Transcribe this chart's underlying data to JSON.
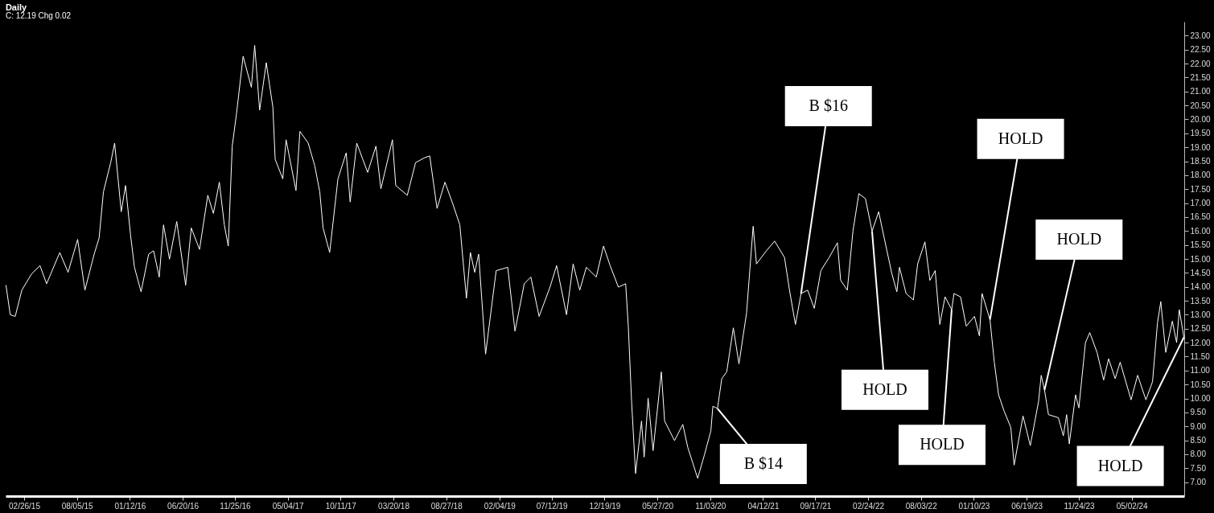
{
  "chart_data": {
    "type": "line",
    "title": "Daily",
    "subtitle": "C: 12.19  Chg 0.02",
    "x": [
      "2015-01-02",
      "2015-01-15",
      "2015-01-30",
      "2015-02-19",
      "2015-03-21",
      "2015-04-15",
      "2015-05-05",
      "2015-06-14",
      "2015-07-09",
      "2015-08-07",
      "2015-08-29",
      "2015-09-26",
      "2015-10-11",
      "2015-10-24",
      "2015-11-15",
      "2015-11-27",
      "2015-12-17",
      "2015-12-30",
      "2016-01-14",
      "2016-01-26",
      "2016-02-15",
      "2016-03-09",
      "2016-03-24",
      "2016-04-10",
      "2016-04-23",
      "2016-05-11",
      "2016-06-02",
      "2016-06-29",
      "2016-07-16",
      "2016-08-10",
      "2016-09-04",
      "2016-09-21",
      "2016-10-09",
      "2016-10-24",
      "2016-11-05",
      "2016-11-17",
      "2016-11-30",
      "2016-12-20",
      "2017-01-14",
      "2017-01-24",
      "2017-02-08",
      "2017-02-28",
      "2017-03-20",
      "2017-03-27",
      "2017-04-19",
      "2017-04-29",
      "2017-05-29",
      "2017-06-10",
      "2017-07-05",
      "2017-07-25",
      "2017-08-09",
      "2017-08-19",
      "2017-09-08",
      "2017-10-03",
      "2017-10-28",
      "2017-11-09",
      "2017-11-29",
      "2018-01-01",
      "2018-01-26",
      "2018-02-10",
      "2018-03-17",
      "2018-03-27",
      "2018-05-01",
      "2018-05-26",
      "2018-06-23",
      "2018-07-08",
      "2018-07-30",
      "2018-08-23",
      "2018-09-17",
      "2018-10-07",
      "2018-10-27",
      "2018-11-08",
      "2018-11-21",
      "2018-12-03",
      "2018-12-24",
      "2019-01-25",
      "2019-03-01",
      "2019-03-23",
      "2019-04-20",
      "2019-05-10",
      "2019-06-04",
      "2019-07-07",
      "2019-07-27",
      "2019-08-26",
      "2019-09-15",
      "2019-10-05",
      "2019-10-25",
      "2019-11-24",
      "2019-12-16",
      "2020-01-05",
      "2020-01-30",
      "2020-02-21",
      "2020-02-29",
      "2020-03-10",
      "2020-03-22",
      "2020-04-09",
      "2020-04-17",
      "2020-04-29",
      "2020-05-14",
      "2020-06-08",
      "2020-06-18",
      "2020-07-18",
      "2020-08-12",
      "2020-08-27",
      "2020-09-26",
      "2020-10-16",
      "2020-11-05",
      "2020-11-11",
      "2020-11-25",
      "2020-12-08",
      "2020-12-23",
      "2021-01-12",
      "2021-01-29",
      "2021-02-21",
      "2021-03-13",
      "2021-03-23",
      "2021-04-22",
      "2021-05-17",
      "2021-06-16",
      "2021-07-01",
      "2021-07-19",
      "2021-08-05",
      "2021-08-25",
      "2021-09-14",
      "2021-10-04",
      "2021-10-29",
      "2021-11-23",
      "2021-12-03",
      "2021-12-23",
      "2022-01-09",
      "2022-01-27",
      "2022-02-16",
      "2022-03-08",
      "2022-03-28",
      "2022-04-22",
      "2022-05-07",
      "2022-05-22",
      "2022-05-30",
      "2022-06-19",
      "2022-07-11",
      "2022-07-24",
      "2022-08-15",
      "2022-08-30",
      "2022-09-15",
      "2022-09-29",
      "2022-10-15",
      "2022-11-04",
      "2022-11-11",
      "2022-12-01",
      "2022-12-18",
      "2023-01-12",
      "2023-01-27",
      "2023-02-04",
      "2023-02-28",
      "2023-03-13",
      "2023-03-26",
      "2023-04-12",
      "2023-05-02",
      "2023-05-12",
      "2023-06-08",
      "2023-06-30",
      "2023-07-25",
      "2023-08-02",
      "2023-08-12",
      "2023-08-24",
      "2023-09-23",
      "2023-10-08",
      "2023-10-18",
      "2023-10-26",
      "2023-11-14",
      "2023-11-24",
      "2023-12-14",
      "2023-12-27",
      "2024-01-18",
      "2024-02-07",
      "2024-02-22",
      "2024-03-13",
      "2024-03-28",
      "2024-04-30",
      "2024-05-20",
      "2024-06-14",
      "2024-07-04",
      "2024-07-19",
      "2024-07-29",
      "2024-08-13",
      "2024-09-02",
      "2024-09-15",
      "2024-09-23",
      "2024-10-07"
    ],
    "series": [
      {
        "color": "#ffffff",
        "values": [
          14.06,
          13.0,
          12.94,
          13.88,
          14.47,
          14.76,
          14.11,
          15.23,
          14.52,
          15.7,
          13.88,
          15.17,
          15.75,
          17.4,
          18.45,
          19.15,
          16.69,
          17.63,
          15.87,
          14.7,
          13.82,
          15.17,
          15.29,
          14.35,
          16.22,
          14.99,
          16.34,
          14.06,
          16.11,
          15.34,
          17.28,
          16.63,
          17.75,
          16.22,
          15.46,
          19.04,
          20.21,
          22.26,
          21.15,
          22.65,
          20.33,
          22.03,
          20.44,
          18.57,
          17.87,
          19.27,
          17.45,
          19.57,
          19.15,
          18.33,
          17.4,
          16.11,
          15.23,
          17.87,
          18.8,
          17.04,
          19.15,
          18.1,
          19.04,
          17.51,
          19.27,
          17.63,
          17.28,
          18.45,
          18.63,
          18.69,
          16.81,
          17.75,
          16.93,
          16.22,
          13.59,
          15.23,
          14.52,
          15.17,
          11.59,
          14.58,
          14.7,
          12.41,
          14.11,
          14.35,
          12.94,
          13.99,
          14.76,
          13.0,
          14.82,
          13.88,
          14.7,
          14.35,
          15.46,
          14.76,
          13.99,
          14.11,
          12.59,
          9.89,
          7.31,
          9.19,
          7.9,
          10.01,
          8.13,
          10.95,
          9.19,
          8.49,
          9.07,
          8.25,
          7.14,
          7.96,
          8.84,
          9.72,
          9.64,
          10.71,
          10.95,
          12.53,
          11.24,
          13.06,
          16.17,
          14.82,
          15.29,
          15.64,
          15.05,
          13.88,
          12.65,
          13.76,
          13.88,
          13.23,
          14.58,
          15.05,
          15.58,
          14.23,
          13.88,
          15.99,
          17.34,
          17.16,
          15.99,
          16.69,
          15.29,
          14.47,
          13.82,
          14.7,
          13.76,
          13.53,
          14.82,
          15.61,
          14.23,
          14.58,
          12.65,
          13.64,
          13.18,
          13.76,
          13.64,
          12.59,
          12.94,
          12.24,
          13.76,
          12.82,
          11.3,
          10.13,
          9.54,
          8.96,
          7.61,
          9.37,
          8.31,
          9.89,
          10.83,
          10.3,
          9.42,
          9.31,
          8.66,
          9.42,
          8.37,
          10.13,
          9.66,
          12.0,
          12.36,
          11.65,
          10.66,
          11.42,
          10.71,
          11.3,
          9.95,
          10.83,
          9.95,
          10.6,
          12.71,
          13.47,
          11.65,
          12.77,
          12.0,
          13.18,
          12.19
        ]
      }
    ],
    "xlim": [
      "2015-01-01",
      "2024-10-08"
    ],
    "xticks": [
      {
        "value": "2015-02-26",
        "label": "02/26/15"
      },
      {
        "value": "2015-08-05",
        "label": "08/05/15"
      },
      {
        "value": "2016-01-12",
        "label": "01/12/16"
      },
      {
        "value": "2016-06-20",
        "label": "06/20/16"
      },
      {
        "value": "2016-11-25",
        "label": "11/25/16"
      },
      {
        "value": "2017-05-04",
        "label": "05/04/17"
      },
      {
        "value": "2017-10-11",
        "label": "10/11/17"
      },
      {
        "value": "2018-03-20",
        "label": "03/20/18"
      },
      {
        "value": "2018-08-27",
        "label": "08/27/18"
      },
      {
        "value": "2019-02-04",
        "label": "02/04/19"
      },
      {
        "value": "2019-07-12",
        "label": "07/12/19"
      },
      {
        "value": "2019-12-19",
        "label": "12/19/19"
      },
      {
        "value": "2020-05-27",
        "label": "05/27/20"
      },
      {
        "value": "2020-11-03",
        "label": "11/03/20"
      },
      {
        "value": "2021-04-12",
        "label": "04/12/21"
      },
      {
        "value": "2021-09-17",
        "label": "09/17/21"
      },
      {
        "value": "2022-02-24",
        "label": "02/24/22"
      },
      {
        "value": "2022-08-03",
        "label": "08/03/22"
      },
      {
        "value": "2023-01-10",
        "label": "01/10/23"
      },
      {
        "value": "2023-06-19",
        "label": "06/19/23"
      },
      {
        "value": "2023-11-24",
        "label": "11/24/23"
      },
      {
        "value": "2024-05-02",
        "label": "05/02/24"
      }
    ],
    "ylim": [
      6.5,
      23.5
    ],
    "yticks": [
      {
        "value": 7,
        "label": "7.00"
      },
      {
        "value": 7.5,
        "label": "7.50"
      },
      {
        "value": 8,
        "label": "8.00"
      },
      {
        "value": 8.5,
        "label": "8.50"
      },
      {
        "value": 9,
        "label": "9.00"
      },
      {
        "value": 9.5,
        "label": "9.50"
      },
      {
        "value": 10,
        "label": "10.00"
      },
      {
        "value": 10.5,
        "label": "10.50"
      },
      {
        "value": 11,
        "label": "11.00"
      },
      {
        "value": 11.5,
        "label": "11.50"
      },
      {
        "value": 12,
        "label": "12.00"
      },
      {
        "value": 12.5,
        "label": "12.50"
      },
      {
        "value": 13,
        "label": "13.00"
      },
      {
        "value": 13.5,
        "label": "13.50"
      },
      {
        "value": 14,
        "label": "14.00"
      },
      {
        "value": 14.5,
        "label": "14.50"
      },
      {
        "value": 15,
        "label": "15.00"
      },
      {
        "value": 15.5,
        "label": "15.50"
      },
      {
        "value": 16,
        "label": "16.00"
      },
      {
        "value": 16.5,
        "label": "16.50"
      },
      {
        "value": 17,
        "label": "17.00"
      },
      {
        "value": 17.5,
        "label": "17.50"
      },
      {
        "value": 18,
        "label": "18.00"
      },
      {
        "value": 18.5,
        "label": "18.50"
      },
      {
        "value": 19,
        "label": "19.00"
      },
      {
        "value": 19.5,
        "label": "19.50"
      },
      {
        "value": 20,
        "label": "20.00"
      },
      {
        "value": 20.5,
        "label": "20.50"
      },
      {
        "value": 21,
        "label": "21.00"
      },
      {
        "value": 21.5,
        "label": "21.50"
      },
      {
        "value": 22,
        "label": "22.00"
      },
      {
        "value": 22.5,
        "label": "22.50"
      },
      {
        "value": 23,
        "label": "23.00"
      }
    ],
    "annotations": [
      {
        "text": "B $14",
        "x": "2020-11-25",
        "y": 9.64
      },
      {
        "text": "B $16",
        "x": "2021-08-05",
        "y": 13.76
      },
      {
        "text": "HOLD",
        "x": "2022-03-08",
        "y": 15.99
      },
      {
        "text": "HOLD",
        "x": "2022-11-04",
        "y": 13.18
      },
      {
        "text": "HOLD",
        "x": "2023-02-28",
        "y": 12.82
      },
      {
        "text": "HOLD",
        "x": "2023-08-12",
        "y": 10.3
      },
      {
        "text": "HOLD",
        "x": "2024-10-07",
        "y": 12.19
      }
    ]
  }
}
